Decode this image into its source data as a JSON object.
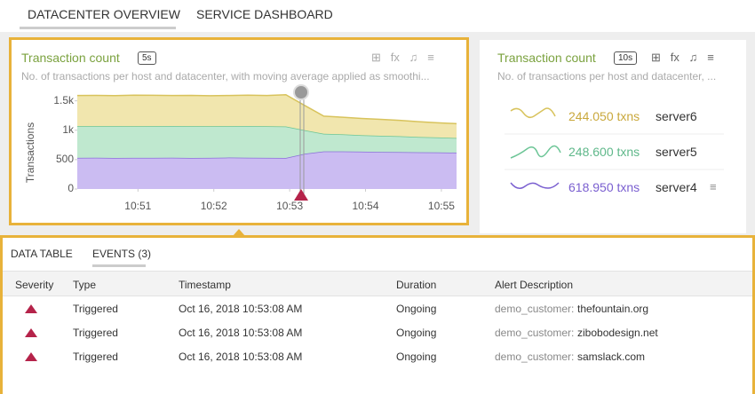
{
  "tabs": [
    "DATACENTER OVERVIEW",
    "SERVICE DASHBOARD"
  ],
  "left_panel": {
    "title": "Transaction count",
    "interval": "5s",
    "description": "No. of transactions per host and datacenter, with moving average applied as smoothi..."
  },
  "chart_data": {
    "type": "area",
    "stacked": true,
    "ylabel": "Transactions",
    "x": [
      650.2,
      650.45,
      650.7,
      650.95,
      651.2,
      651.45,
      651.7,
      651.95,
      652.2,
      652.45,
      652.7,
      652.95,
      653.2,
      653.45,
      653.7,
      653.95,
      654.2,
      654.45,
      654.7,
      654.95,
      655.2
    ],
    "xlim": [
      650.2,
      655.2
    ],
    "xticks": [
      {
        "value": 651,
        "label": "10:51"
      },
      {
        "value": 652,
        "label": "10:52"
      },
      {
        "value": 653,
        "label": "10:53"
      },
      {
        "value": 654,
        "label": "10:54"
      },
      {
        "value": 655,
        "label": "10:55"
      }
    ],
    "ylim": [
      0,
      1600
    ],
    "yticks": [
      0,
      500,
      {
        "value": 1000,
        "label": "1k"
      },
      {
        "value": 1500,
        "label": "1.5k"
      }
    ],
    "series": [
      {
        "name": "server4",
        "color": "#8a70d8",
        "fill": "#cbbcf2",
        "values": [
          530,
          532,
          528,
          531,
          530,
          533,
          529,
          531,
          535,
          532,
          530,
          528,
          600,
          640,
          640,
          635,
          630,
          628,
          625,
          622,
          619
        ]
      },
      {
        "name": "server5",
        "color": "#6cc596",
        "fill": "#bfe8cf",
        "values": [
          540,
          538,
          542,
          536,
          540,
          538,
          541,
          537,
          535,
          540,
          538,
          536,
          400,
          300,
          290,
          280,
          275,
          270,
          260,
          255,
          249
        ]
      },
      {
        "name": "server6",
        "color": "#d8c35c",
        "fill": "#f1e6ae",
        "values": [
          520,
          522,
          518,
          530,
          525,
          520,
          523,
          519,
          521,
          525,
          522,
          540,
          420,
          300,
          290,
          285,
          280,
          270,
          260,
          250,
          244
        ]
      }
    ]
  },
  "right_panel": {
    "title": "Transaction count",
    "interval": "10s",
    "description": "No. of transactions per host and datacenter, ...",
    "rows": [
      {
        "value": "244.050 txns",
        "host": "server6"
      },
      {
        "value": "248.600 txns",
        "host": "server5"
      },
      {
        "value": "618.950 txns",
        "host": "server4"
      }
    ]
  },
  "bottom_tabs": [
    "DATA TABLE",
    "EVENTS (3)"
  ],
  "table": {
    "headers": [
      "Severity",
      "Type",
      "Timestamp",
      "Duration",
      "Alert Description"
    ],
    "rows": [
      {
        "type": "Triggered",
        "timestamp": "Oct 16, 2018 10:53:08 AM",
        "duration": "Ongoing",
        "prefix": "demo_customer:",
        "target": "thefountain.org"
      },
      {
        "type": "Triggered",
        "timestamp": "Oct 16, 2018 10:53:08 AM",
        "duration": "Ongoing",
        "prefix": "demo_customer:",
        "target": "zibobodesign.net"
      },
      {
        "type": "Triggered",
        "timestamp": "Oct 16, 2018 10:53:08 AM",
        "duration": "Ongoing",
        "prefix": "demo_customer:",
        "target": "samslack.com"
      }
    ]
  }
}
